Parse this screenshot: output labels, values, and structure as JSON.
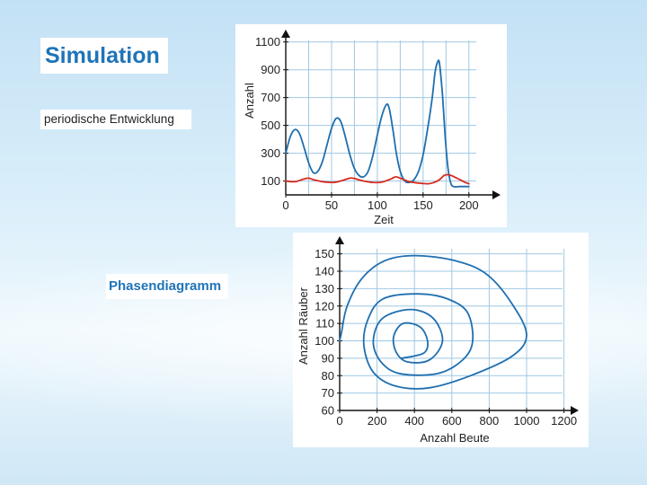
{
  "slide": {
    "title": "Simulation",
    "subtitle": "periodische Entwicklung",
    "phase_label": "Phasendiagramm"
  },
  "colors": {
    "accent": "#1f74b8",
    "prey_line": "#1f6fb0",
    "predator_line": "#d62a1e",
    "grid": "#9fc8e4",
    "plot_bg": "#ffffff"
  },
  "chart_data": [
    {
      "type": "line",
      "xlabel": "Zeit",
      "ylabel": "Anzahl",
      "xlim": [
        0,
        210
      ],
      "ylim": [
        0,
        1150
      ],
      "x_ticks": [
        0,
        50,
        100,
        150,
        200
      ],
      "y_ticks": [
        100,
        300,
        500,
        700,
        900,
        1100
      ],
      "grid": true,
      "series": [
        {
          "color": "#1f6fb0",
          "points": [
            [
              0,
              300
            ],
            [
              5,
              420
            ],
            [
              10,
              470
            ],
            [
              15,
              440
            ],
            [
              20,
              340
            ],
            [
              25,
              230
            ],
            [
              30,
              160
            ],
            [
              35,
              170
            ],
            [
              40,
              240
            ],
            [
              45,
              360
            ],
            [
              50,
              480
            ],
            [
              55,
              550
            ],
            [
              60,
              530
            ],
            [
              65,
              420
            ],
            [
              70,
              290
            ],
            [
              75,
              190
            ],
            [
              80,
              140
            ],
            [
              85,
              130
            ],
            [
              90,
              170
            ],
            [
              95,
              280
            ],
            [
              100,
              430
            ],
            [
              105,
              570
            ],
            [
              110,
              650
            ],
            [
              113,
              620
            ],
            [
              117,
              470
            ],
            [
              121,
              290
            ],
            [
              125,
              170
            ],
            [
              130,
              100
            ],
            [
              135,
              90
            ],
            [
              140,
              110
            ],
            [
              145,
              170
            ],
            [
              150,
              290
            ],
            [
              155,
              480
            ],
            [
              160,
              700
            ],
            [
              163,
              880
            ],
            [
              166,
              960
            ],
            [
              168,
              940
            ],
            [
              171,
              730
            ],
            [
              174,
              430
            ],
            [
              177,
              200
            ],
            [
              180,
              90
            ],
            [
              183,
              60
            ],
            [
              190,
              60
            ],
            [
              200,
              60
            ]
          ]
        },
        {
          "color": "#d62a1e",
          "points": [
            [
              0,
              100
            ],
            [
              10,
              95
            ],
            [
              20,
              115
            ],
            [
              25,
              120
            ],
            [
              30,
              110
            ],
            [
              40,
              95
            ],
            [
              50,
              90
            ],
            [
              55,
              92
            ],
            [
              60,
              100
            ],
            [
              70,
              120
            ],
            [
              75,
              118
            ],
            [
              85,
              100
            ],
            [
              95,
              90
            ],
            [
              105,
              92
            ],
            [
              115,
              115
            ],
            [
              120,
              130
            ],
            [
              125,
              120
            ],
            [
              135,
              95
            ],
            [
              145,
              85
            ],
            [
              155,
              80
            ],
            [
              162,
              90
            ],
            [
              168,
              110
            ],
            [
              173,
              140
            ],
            [
              178,
              145
            ],
            [
              184,
              130
            ],
            [
              190,
              110
            ],
            [
              196,
              90
            ],
            [
              200,
              80
            ]
          ]
        }
      ]
    },
    {
      "type": "line",
      "xlabel": "Anzahl Beute",
      "ylabel": "Anzahl Räuber",
      "xlim": [
        0,
        1250
      ],
      "ylim": [
        60,
        156
      ],
      "x_ticks": [
        0,
        200,
        400,
        600,
        800,
        1000,
        1200
      ],
      "y_ticks": [
        60,
        70,
        80,
        90,
        100,
        110,
        120,
        130,
        140,
        150
      ],
      "grid": true,
      "series": [
        {
          "color": "#1f6fb0",
          "points": [
            [
              330,
              90
            ],
            [
              450,
              93
            ],
            [
              470,
              100
            ],
            [
              430,
              108
            ],
            [
              340,
              110
            ],
            [
              290,
              103
            ],
            [
              300,
              94
            ],
            [
              360,
              88
            ],
            [
              480,
              89
            ],
            [
              550,
              100
            ],
            [
              500,
              113
            ],
            [
              380,
              118
            ],
            [
              230,
              113
            ],
            [
              180,
              100
            ],
            [
              220,
              88
            ],
            [
              330,
              81
            ],
            [
              550,
              82
            ],
            [
              700,
              95
            ],
            [
              690,
              115
            ],
            [
              580,
              124
            ],
            [
              410,
              127
            ],
            [
              230,
              124
            ],
            [
              150,
              112
            ],
            [
              130,
              97
            ],
            [
              180,
              82
            ],
            [
              300,
              74
            ],
            [
              480,
              73
            ],
            [
              700,
              80
            ],
            [
              920,
              91
            ],
            [
              1000,
              103
            ],
            [
              930,
              120
            ],
            [
              790,
              138
            ],
            [
              620,
              146
            ],
            [
              400,
              149
            ],
            [
              240,
              146
            ],
            [
              120,
              136
            ],
            [
              40,
              120
            ],
            [
              10,
              105
            ],
            [
              0,
              100
            ]
          ]
        }
      ]
    }
  ]
}
